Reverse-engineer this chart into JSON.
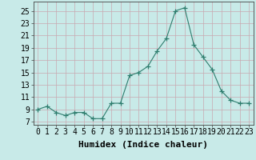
{
  "x": [
    0,
    1,
    2,
    3,
    4,
    5,
    6,
    7,
    8,
    9,
    10,
    11,
    12,
    13,
    14,
    15,
    16,
    17,
    18,
    19,
    20,
    21,
    22,
    23
  ],
  "y": [
    9,
    9.5,
    8.5,
    8,
    8.5,
    8.5,
    7.5,
    7.5,
    10,
    10,
    14.5,
    15,
    16,
    18.5,
    20.5,
    25,
    25.5,
    19.5,
    17.5,
    15.5,
    12,
    10.5,
    10,
    10
  ],
  "line_color": "#2e7d6e",
  "marker": "+",
  "marker_size": 4,
  "marker_color": "#2e7d6e",
  "bg_color": "#c8eae8",
  "grid_color": "#c8a8b0",
  "xlabel": "Humidex (Indice chaleur)",
  "xlabel_fontsize": 8,
  "tick_fontsize": 7,
  "yticks": [
    7,
    9,
    11,
    13,
    15,
    17,
    19,
    21,
    23,
    25
  ],
  "ylim": [
    6.5,
    26.5
  ],
  "xlim": [
    -0.5,
    23.5
  ],
  "xticks": [
    0,
    1,
    2,
    3,
    4,
    5,
    6,
    7,
    8,
    9,
    10,
    11,
    12,
    13,
    14,
    15,
    16,
    17,
    18,
    19,
    20,
    21,
    22,
    23
  ]
}
